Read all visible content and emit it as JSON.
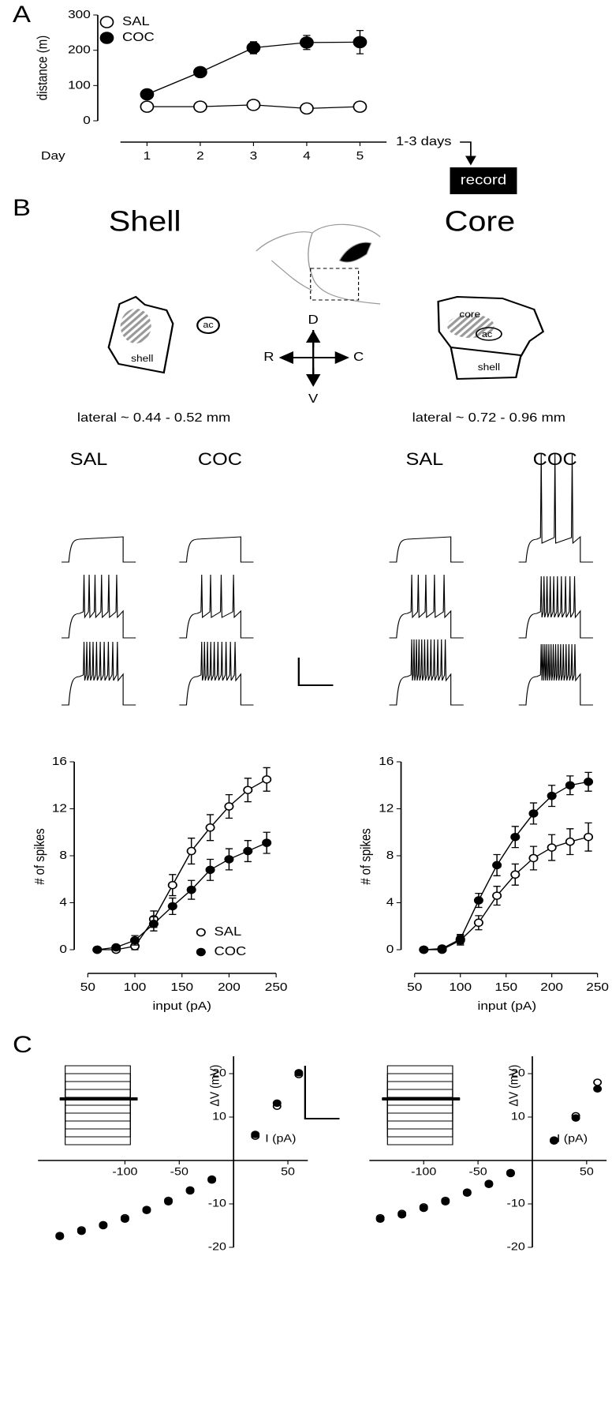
{
  "labels": {
    "panel_a": "A",
    "panel_b": "B",
    "panel_c": "C",
    "shell_title": "Shell",
    "core_title": "Core",
    "delay": "1-3 days",
    "record": "record",
    "shell_region": "shell",
    "ac_left": "ac",
    "core_region": "core",
    "ac_right": "ac",
    "shell_region_right": "shell",
    "dir_d": "D",
    "dir_r": "R",
    "dir_c": "C",
    "dir_v": "V",
    "lateral_shell": "lateral ~ 0.44 - 0.52 mm",
    "lateral_core": "lateral ~ 0.72 - 0.96 mm",
    "shell_sal": "SAL",
    "shell_coc": "COC",
    "core_sal": "SAL",
    "core_coc": "COC"
  },
  "chart_data": [
    {
      "type": "line",
      "x_label": "Day",
      "y_label": "distance (m)",
      "x": [
        1,
        2,
        3,
        4,
        5
      ],
      "xlim": [
        0.5,
        5.5
      ],
      "xticks": [
        1,
        2,
        3,
        4,
        5
      ],
      "ylim": [
        0,
        300
      ],
      "yticks": [
        0,
        100,
        200,
        300
      ],
      "legend": true,
      "series": [
        {
          "name": "SAL",
          "color": "#000000",
          "marker_fill": "#ffffff",
          "values": [
            40,
            40,
            45,
            35,
            40
          ],
          "errors": [
            4,
            4,
            5,
            4,
            5
          ]
        },
        {
          "name": "COC",
          "color": "#000000",
          "marker_fill": "#000000",
          "values": [
            75,
            138,
            207,
            222,
            223
          ],
          "errors": [
            8,
            12,
            17,
            20,
            33
          ]
        }
      ]
    },
    {
      "type": "line",
      "x_label": "input (pA)",
      "y_label": "# of spikes",
      "x": [
        60,
        80,
        100,
        120,
        140,
        160,
        180,
        200,
        220,
        240
      ],
      "xlim": [
        50,
        250
      ],
      "xticks": [
        50,
        100,
        150,
        200,
        250
      ],
      "ylim": [
        0,
        16
      ],
      "yticks": [
        0,
        4,
        8,
        12,
        16
      ],
      "legend": true,
      "series": [
        {
          "name": "SAL",
          "color": "#000000",
          "marker_fill": "#ffffff",
          "values": [
            0,
            0,
            0.3,
            2.6,
            5.5,
            8.4,
            10.4,
            12.2,
            13.6,
            14.5
          ],
          "errors": [
            0,
            0.1,
            0.3,
            0.7,
            0.9,
            1.1,
            1.1,
            1,
            1,
            1
          ]
        },
        {
          "name": "COC",
          "color": "#000000",
          "marker_fill": "#000000",
          "values": [
            0,
            0.2,
            0.8,
            2.2,
            3.7,
            5.1,
            6.8,
            7.7,
            8.4,
            9.1
          ],
          "errors": [
            0,
            0.1,
            0.4,
            0.6,
            0.7,
            0.8,
            0.9,
            0.9,
            0.9,
            0.9
          ]
        }
      ]
    },
    {
      "type": "line",
      "x_label": "input (pA)",
      "y_label": "# of spikes",
      "x": [
        60,
        80,
        100,
        120,
        140,
        160,
        180,
        200,
        220,
        240
      ],
      "xlim": [
        50,
        250
      ],
      "xticks": [
        50,
        100,
        150,
        200,
        250
      ],
      "ylim": [
        0,
        16
      ],
      "yticks": [
        0,
        4,
        8,
        12,
        16
      ],
      "series": [
        {
          "color": "#000000",
          "marker_fill": "#ffffff",
          "values": [
            0,
            0,
            0.8,
            2.3,
            4.6,
            6.4,
            7.8,
            8.7,
            9.2,
            9.6
          ],
          "errors": [
            0,
            0.1,
            0.4,
            0.6,
            0.8,
            0.9,
            1,
            1.1,
            1.1,
            1.2
          ]
        },
        {
          "color": "#000000",
          "marker_fill": "#000000",
          "values": [
            0,
            0.1,
            0.9,
            4.2,
            7.2,
            9.6,
            11.6,
            13.1,
            14,
            14.3
          ],
          "errors": [
            0,
            0.1,
            0.4,
            0.6,
            0.9,
            0.9,
            0.9,
            0.9,
            0.8,
            0.8
          ]
        }
      ]
    },
    {
      "type": "scatter",
      "x_label": "I (pA)",
      "y_label": "ΔV (mV)",
      "x": [
        -160,
        -140,
        -120,
        -100,
        -80,
        -60,
        -40,
        -20,
        20,
        40,
        60
      ],
      "xlim": [
        -180,
        60
      ],
      "xticks": [
        -100,
        -50,
        50
      ],
      "ylim": [
        -20,
        24
      ],
      "yticks": [
        -20,
        -10,
        10,
        20
      ],
      "series": [
        {
          "color": "#000000",
          "marker_fill": "#ffffff",
          "values": [
            -17.3,
            -16,
            -14.8,
            -13.2,
            -11.3,
            -9.2,
            -6.8,
            -4.3,
            5.6,
            12.5,
            19.8
          ]
        },
        {
          "color": "#000000",
          "marker_fill": "#000000",
          "values": [
            -17.5,
            -16.3,
            -15,
            -13.5,
            -11.5,
            -9.5,
            -7,
            -4.5,
            6,
            13.2,
            20.2
          ]
        }
      ]
    },
    {
      "type": "scatter",
      "x_label": "I (pA)",
      "y_label": "ΔV (mV)",
      "x": [
        -140,
        -120,
        -100,
        -80,
        -60,
        -40,
        -20,
        20,
        40,
        60
      ],
      "xlim": [
        -150,
        60
      ],
      "xticks": [
        -100,
        -50,
        50
      ],
      "ylim": [
        -20,
        24
      ],
      "yticks": [
        -20,
        -10,
        10,
        20
      ],
      "series": [
        {
          "color": "#000000",
          "marker_fill": "#ffffff",
          "values": [
            -13.2,
            -12.2,
            -10.7,
            -9.2,
            -7.3,
            -5.3,
            -2.8,
            4.7,
            10.3,
            18
          ]
        },
        {
          "color": "#000000",
          "marker_fill": "#000000",
          "values": [
            -13.5,
            -12.5,
            -11,
            -9.5,
            -7.5,
            -5.5,
            -3,
            4.5,
            9.8,
            16.5
          ]
        }
      ]
    }
  ]
}
